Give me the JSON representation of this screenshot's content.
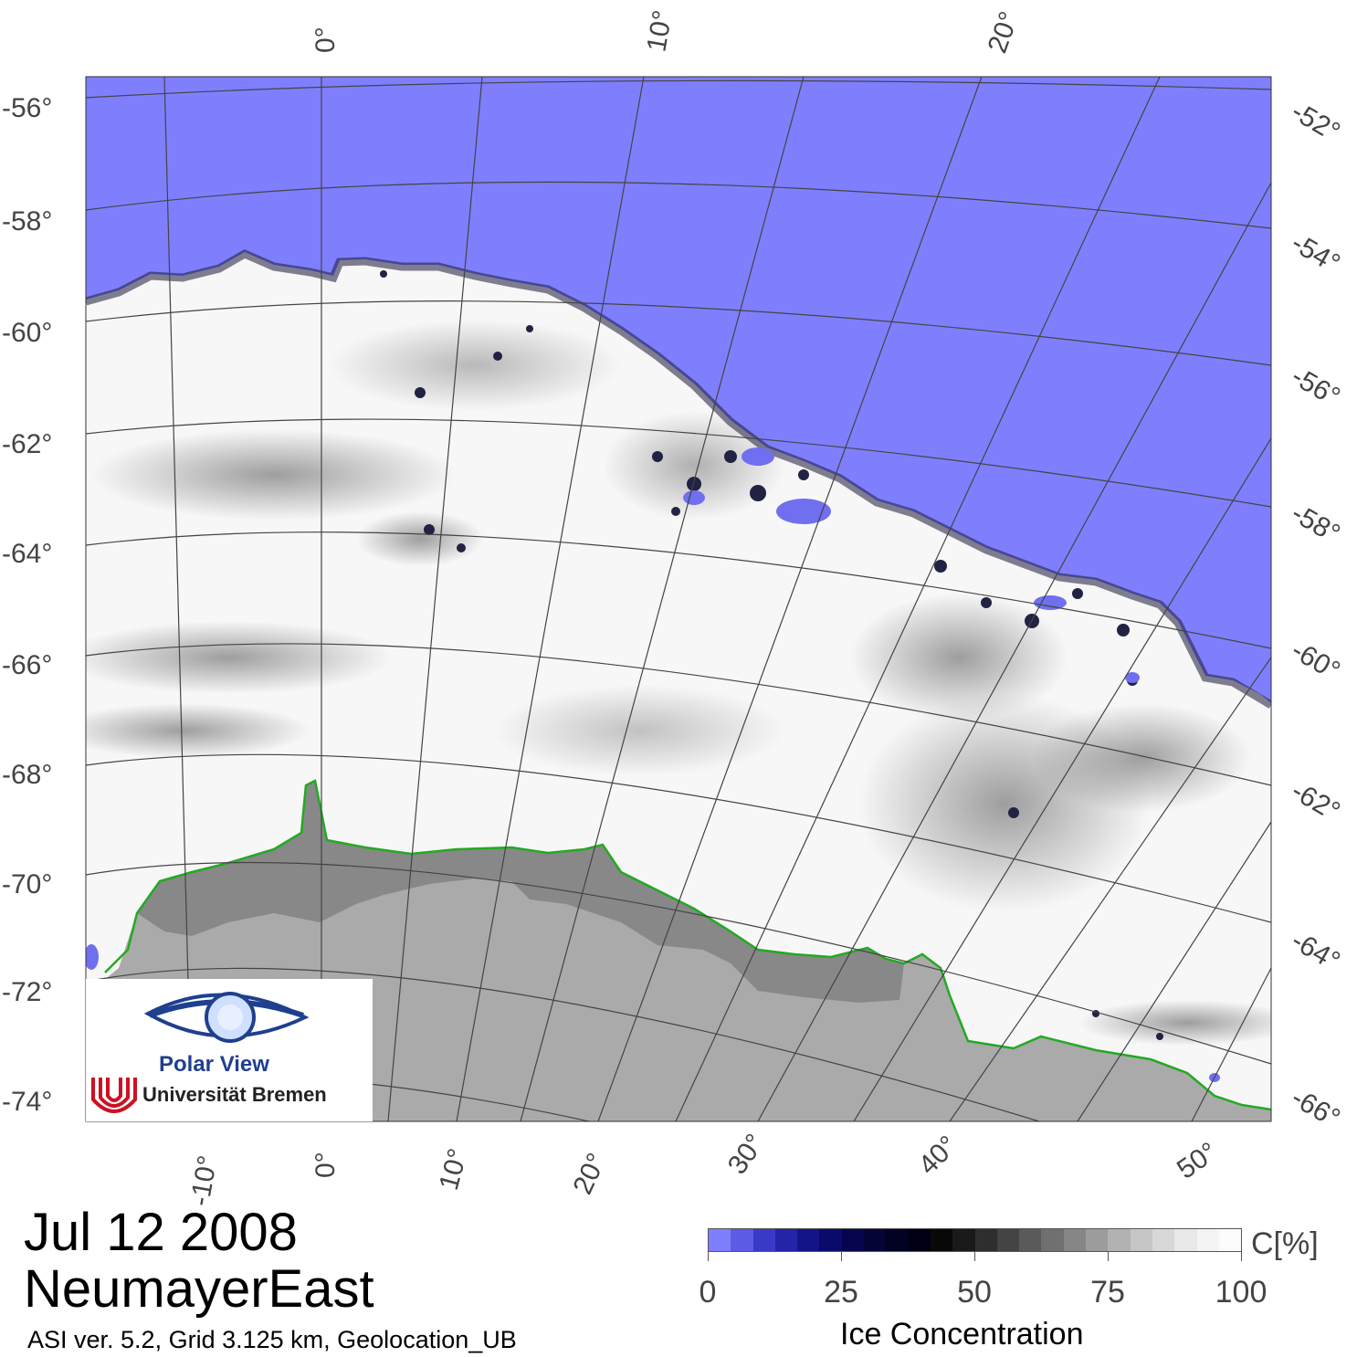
{
  "map": {
    "top_longitude_labels": [
      "0°",
      "10°",
      "20°"
    ],
    "bottom_longitude_labels": [
      "-10°",
      "0°",
      "10°",
      "20°",
      "30°",
      "40°",
      "50°"
    ],
    "left_latitude_labels": [
      "-56°",
      "-58°",
      "-60°",
      "-62°",
      "-64°",
      "-66°",
      "-68°",
      "-70°",
      "-72°",
      "-74°"
    ],
    "right_latitude_labels": [
      "-52°",
      "-54°",
      "-56°",
      "-58°",
      "-60°",
      "-62°",
      "-64°",
      "-66°"
    ],
    "colors": {
      "open_water": "#7f7ffe",
      "ice_high": "#ffffff",
      "land": "#aaaaaa",
      "ice_shelf": "#888888",
      "coastline": "#22aa22",
      "graticule": "#444444"
    }
  },
  "logo": {
    "title": "Polar View",
    "institution": "Universität Bremen"
  },
  "caption": {
    "date": "Jul 12 2008",
    "region": "NeumayerEast",
    "meta": "ASI ver. 5.2,  Grid 3.125 km, Geolocation_UB"
  },
  "colorbar": {
    "unit": "C[%]",
    "title": "Ice Concentration",
    "tick_labels": [
      "0",
      "25",
      "50",
      "75",
      "100"
    ],
    "colors": [
      "#7f7ffe",
      "#5c5ce6",
      "#3a3ac8",
      "#2424a8",
      "#141488",
      "#0a0a6a",
      "#06064e",
      "#040436",
      "#020222",
      "#000014",
      "#080808",
      "#1a1a1a",
      "#2e2e2e",
      "#444444",
      "#5a5a5a",
      "#707070",
      "#868686",
      "#9c9c9c",
      "#b2b2b2",
      "#c6c6c6",
      "#d8d8d8",
      "#e8e8e8",
      "#f4f4f4",
      "#fcfcfc"
    ]
  }
}
